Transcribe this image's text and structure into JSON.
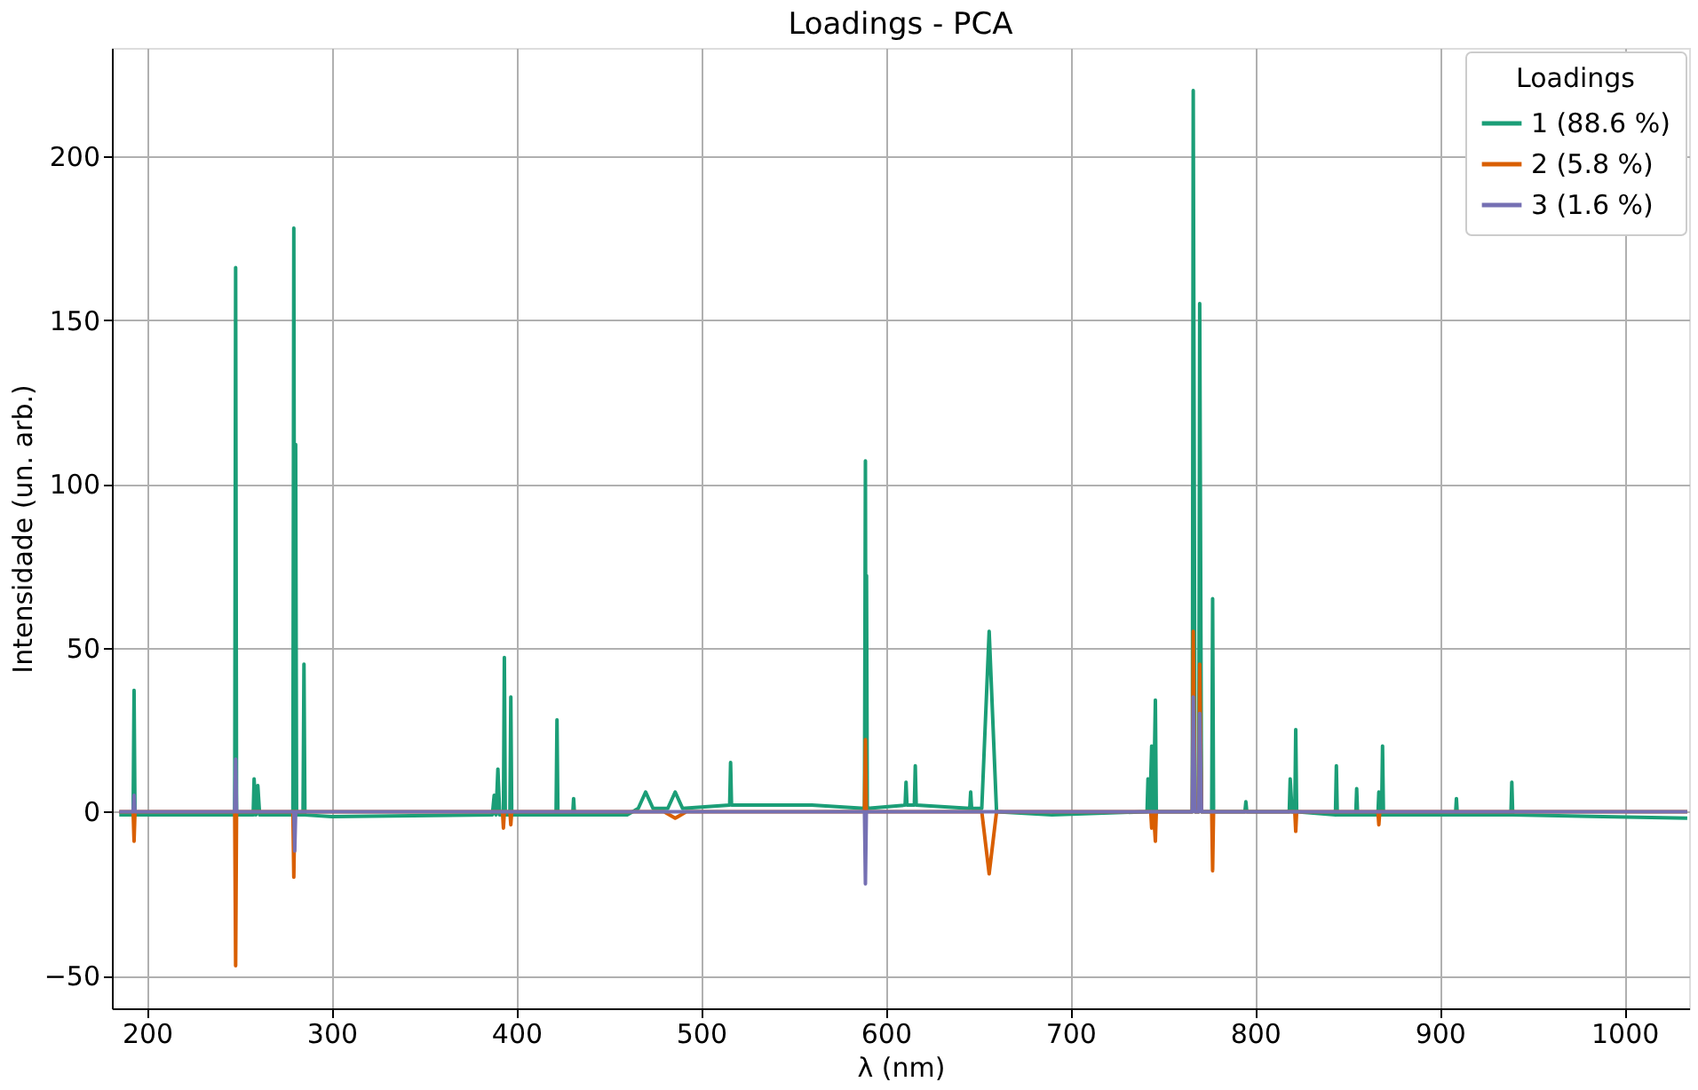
{
  "chart_data": {
    "type": "line",
    "title": "Loadings - PCA",
    "xlabel": "λ (nm)",
    "ylabel": "Intensidade (un. arb.)",
    "legend_title": "Loadings",
    "xlim": [
      181,
      1035
    ],
    "xticks": [
      200,
      300,
      400,
      500,
      600,
      700,
      800,
      900,
      1000
    ],
    "ylim": [
      -60,
      233
    ],
    "yticks": [
      -50,
      0,
      50,
      100,
      150,
      200
    ],
    "grid": true,
    "legend": "top right",
    "marker": "none",
    "line_style": "solid",
    "series": [
      {
        "name": "1 (88.6 %)",
        "color": "#1b9e77",
        "x": [
          185,
          192.5,
          193,
          193.5,
          247.5,
          248,
          248.5,
          257.5,
          258,
          259,
          260,
          261,
          279,
          279.5,
          280,
          280.5,
          281,
          284.5,
          285,
          285.5,
          300,
          387,
          388,
          389,
          390,
          391,
          393,
          393.5,
          394,
          396.5,
          397,
          397.5,
          421.5,
          422,
          422.5,
          430.5,
          431,
          431.5,
          460,
          466,
          470,
          474,
          482,
          486,
          490,
          515.5,
          516,
          516.5,
          560,
          588.5,
          589,
          589.3,
          589.6,
          590,
          610.5,
          611,
          611.5,
          615.5,
          616,
          616.5,
          645.5,
          646,
          646.5,
          652,
          656,
          660,
          690,
          741.5,
          742,
          743,
          744,
          745,
          746,
          746.5,
          766,
          766.5,
          767.5,
          769.5,
          770,
          771,
          776.5,
          777,
          777.5,
          794.5,
          795,
          795.5,
          818.5,
          819,
          820,
          821.5,
          822,
          822.5,
          843.5,
          844,
          844.5,
          854.5,
          855,
          855.5,
          866.5,
          867,
          867.5,
          868.5,
          869,
          869.5,
          908.5,
          909,
          909.5,
          938.5,
          939,
          939.5,
          1034
        ],
        "values": [
          -1,
          -1,
          37,
          -1,
          -1,
          166,
          -1,
          -1,
          10,
          -1,
          8,
          -1,
          -1,
          178,
          -1,
          112,
          -1,
          -1,
          45,
          -1,
          -1.5,
          -1,
          5,
          -1,
          13,
          -1,
          -1,
          47,
          -1,
          -1,
          35,
          -1,
          -1,
          28,
          -1,
          -1,
          4,
          -1,
          -1,
          1,
          6,
          1,
          1,
          6,
          1,
          2,
          15,
          2,
          2,
          1,
          107,
          1,
          72,
          1,
          2,
          9,
          2,
          2,
          14,
          2,
          1,
          6,
          1,
          1,
          55,
          0,
          -1,
          0,
          10,
          0,
          20,
          0,
          34,
          0,
          0,
          220,
          0,
          0,
          155,
          0,
          0,
          65,
          0,
          0,
          3,
          0,
          0,
          10,
          0,
          0,
          25,
          0,
          -1,
          14,
          -1,
          -1,
          7,
          -1,
          -1,
          6,
          -1,
          -1,
          20,
          -1,
          -1,
          4,
          -1,
          -1,
          9,
          -1,
          -2
        ]
      },
      {
        "name": "2 (5.8 %)",
        "color": "#d95f02",
        "x": [
          185,
          192.5,
          193,
          193.5,
          247.5,
          248,
          248.5,
          279,
          279.5,
          280,
          392.5,
          393,
          393.5,
          396.5,
          397,
          397.5,
          480,
          486,
          492,
          588.5,
          589,
          589.5,
          652,
          656,
          660,
          743.5,
          744,
          745,
          746,
          746.5,
          766,
          766.5,
          767.5,
          769.5,
          770,
          771,
          776.5,
          777,
          777.5,
          821.5,
          822,
          822.5,
          866.5,
          867,
          867.5,
          1034
        ],
        "values": [
          0,
          0,
          -9,
          0,
          0,
          -47,
          0,
          0,
          -20,
          0,
          0,
          -5,
          0,
          0,
          -4,
          0,
          0,
          -2,
          0,
          0,
          22,
          0,
          0,
          -19,
          0,
          0,
          -5,
          0,
          -9,
          0,
          0,
          55,
          0,
          0,
          45,
          0,
          0,
          -18,
          0,
          0,
          -6,
          0,
          0,
          -4,
          0,
          0
        ]
      },
      {
        "name": "3 (1.6 %)",
        "color": "#7570b3",
        "x": [
          185,
          192.5,
          193,
          193.5,
          247.5,
          248,
          248.5,
          279.5,
          280,
          280.5,
          588.5,
          589,
          589.5,
          766,
          766.5,
          767.5,
          769.5,
          770,
          771,
          1034
        ],
        "values": [
          0,
          0,
          5,
          0,
          0,
          16,
          0,
          0,
          -12,
          0,
          0,
          -22,
          0,
          0,
          35,
          0,
          0,
          30,
          0,
          0
        ]
      }
    ]
  }
}
